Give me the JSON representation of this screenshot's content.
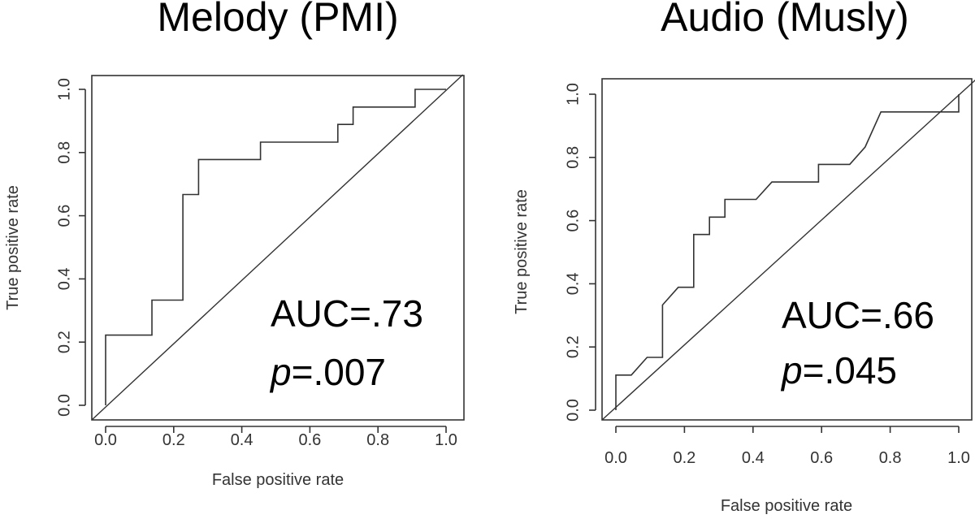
{
  "chart_data": [
    {
      "type": "line",
      "title": "Melody (PMI)",
      "xlabel": "False positive rate",
      "ylabel": "True positive rate",
      "xlim": [
        0,
        1
      ],
      "ylim": [
        0,
        1
      ],
      "x_ticks": [
        "0.0",
        "0.2",
        "0.4",
        "0.6",
        "0.8",
        "1.0"
      ],
      "y_ticks": [
        "0.0",
        "0.2",
        "0.4",
        "0.6",
        "0.8",
        "1.0"
      ],
      "series": [
        {
          "name": "ROC",
          "x": [
            0.0,
            0.0,
            0.136,
            0.136,
            0.227,
            0.227,
            0.273,
            0.273,
            0.455,
            0.455,
            0.682,
            0.682,
            0.727,
            0.727,
            0.909,
            0.909,
            1.0
          ],
          "y": [
            0.0,
            0.222,
            0.222,
            0.333,
            0.333,
            0.667,
            0.667,
            0.778,
            0.778,
            0.833,
            0.833,
            0.889,
            0.889,
            0.944,
            0.944,
            1.0,
            1.0
          ]
        },
        {
          "name": "chance",
          "x": [
            0,
            1
          ],
          "y": [
            0,
            1
          ]
        }
      ],
      "annotation": {
        "auc": "AUC=.73",
        "p_symbol": "p",
        "p_value": "=.007"
      }
    },
    {
      "type": "line",
      "title": "Audio (Musly)",
      "xlabel": "False positive rate",
      "ylabel": "True positive rate",
      "xlim": [
        0,
        1
      ],
      "ylim": [
        0,
        1
      ],
      "x_ticks": [
        "0.0",
        "0.2",
        "0.4",
        "0.6",
        "0.8",
        "1.0"
      ],
      "y_ticks": [
        "0.0",
        "0.2",
        "0.4",
        "0.6",
        "0.8",
        "1.0"
      ],
      "series": [
        {
          "name": "ROC",
          "x": [
            0.0,
            0.0,
            0.045,
            0.091,
            0.136,
            0.136,
            0.182,
            0.227,
            0.227,
            0.273,
            0.273,
            0.318,
            0.318,
            0.409,
            0.455,
            0.591,
            0.591,
            0.682,
            0.727,
            0.773,
            1.0,
            1.0
          ],
          "y": [
            0.0,
            0.111,
            0.111,
            0.167,
            0.167,
            0.333,
            0.389,
            0.389,
            0.556,
            0.556,
            0.611,
            0.611,
            0.667,
            0.667,
            0.722,
            0.722,
            0.778,
            0.778,
            0.833,
            0.944,
            0.944,
            1.0
          ]
        },
        {
          "name": "chance",
          "x": [
            0,
            1
          ],
          "y": [
            0,
            1
          ]
        }
      ],
      "annotation": {
        "auc": "AUC=.66",
        "p_symbol": "p",
        "p_value": "=.045"
      }
    }
  ]
}
